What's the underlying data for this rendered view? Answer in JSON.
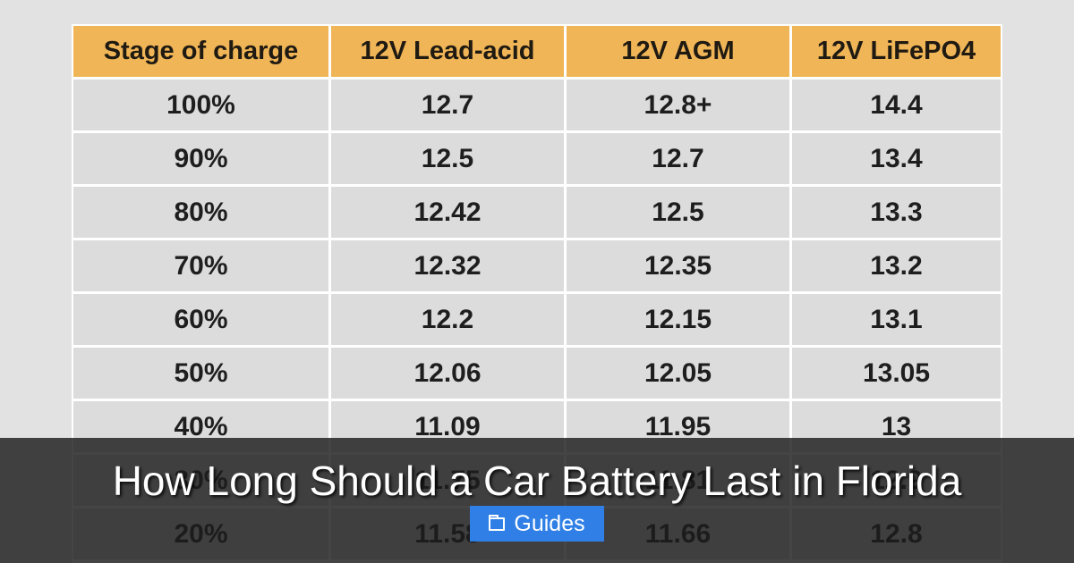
{
  "table": {
    "headers": [
      "Stage of charge",
      "12V Lead-acid",
      "12V AGM",
      "12V LiFePO4"
    ],
    "rows": [
      [
        "100%",
        "12.7",
        "12.8+",
        "14.4"
      ],
      [
        "90%",
        "12.5",
        "12.7",
        "13.4"
      ],
      [
        "80%",
        "12.42",
        "12.5",
        "13.3"
      ],
      [
        "70%",
        "12.32",
        "12.35",
        "13.2"
      ],
      [
        "60%",
        "12.2",
        "12.15",
        "13.1"
      ],
      [
        "50%",
        "12.06",
        "12.05",
        "13.05"
      ],
      [
        "40%",
        "11.09",
        "11.95",
        "13"
      ],
      [
        "30%",
        "11.75",
        "11.81",
        "12.9"
      ],
      [
        "20%",
        "11.58",
        "11.66",
        "12.8"
      ]
    ]
  },
  "overlay": {
    "title": "How Long Should a Car Battery Last in Florida",
    "badge_icon": "folder-icon",
    "badge_label": "Guides"
  },
  "colors": {
    "header_fill": "#f0b556",
    "cell_fill": "#dcdcdc",
    "badge_fill": "#2f7fe6"
  }
}
